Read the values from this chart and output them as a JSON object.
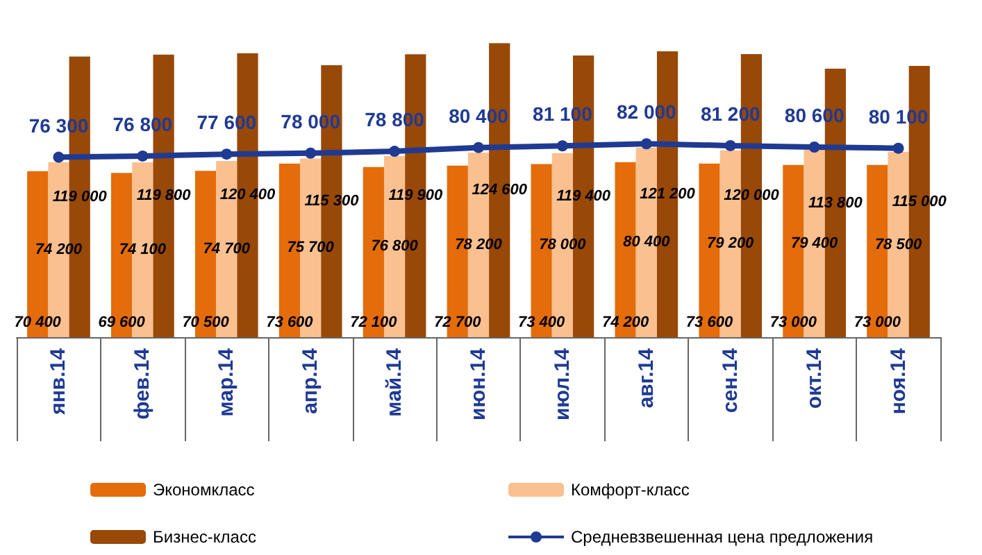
{
  "chart_data": {
    "type": "bar",
    "categories": [
      "янв.14",
      "фев.14",
      "мар.14",
      "апр.14",
      "май.14",
      "июн.14",
      "июл.14",
      "авг.14",
      "сен.14",
      "окт.14",
      "ноя.14"
    ],
    "series": [
      {
        "name": "Экономкласс",
        "color": "#e46c0a",
        "values": [
          70400,
          69600,
          70500,
          73600,
          72100,
          72700,
          73400,
          74200,
          73600,
          73000,
          73000
        ]
      },
      {
        "name": "Комфорт-класс",
        "color": "#fac090",
        "values": [
          74200,
          74100,
          74700,
          75700,
          76800,
          78200,
          78000,
          80400,
          79200,
          79400,
          78500
        ]
      },
      {
        "name": "Бизнес-класс",
        "color": "#984807",
        "values": [
          119000,
          119800,
          120400,
          115300,
          119900,
          124600,
          119400,
          121200,
          120000,
          113800,
          115000
        ]
      },
      {
        "name": "Средневзвешенная цена предложения",
        "type": "line",
        "color": "#1f3a93",
        "marker": "circle",
        "values": [
          76300,
          76800,
          77600,
          78000,
          78800,
          80400,
          81100,
          82000,
          81200,
          80600,
          80100
        ]
      }
    ],
    "data_labels": true,
    "legend": "bottom",
    "grid": false
  }
}
